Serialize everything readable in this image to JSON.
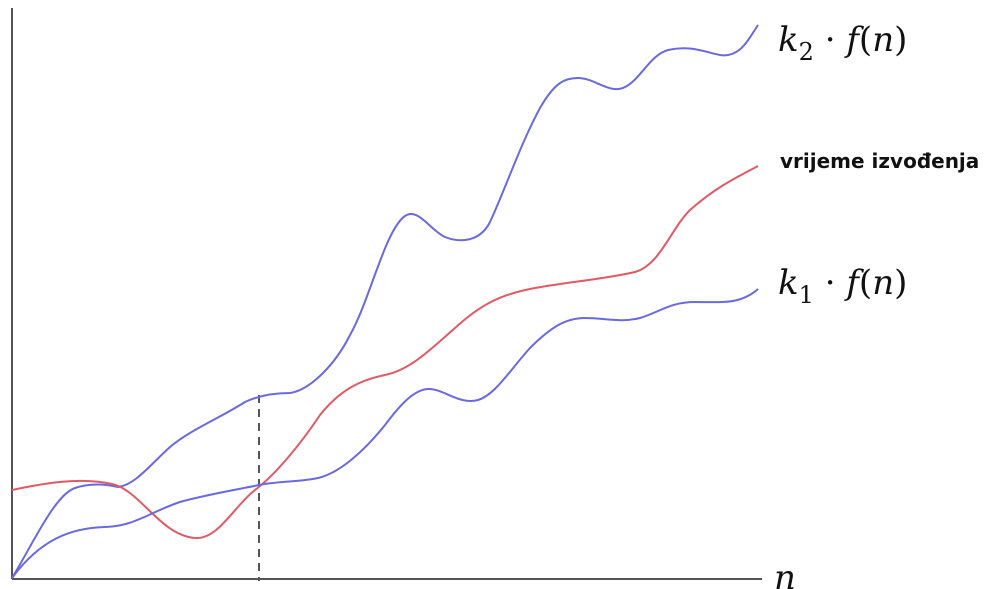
{
  "diagram": {
    "labels": {
      "upper_bound": {
        "coef": "k",
        "sub": "2",
        "dot": " · ",
        "func": "f",
        "open": "(",
        "arg": "n",
        "close": ")"
      },
      "lower_bound": {
        "coef": "k",
        "sub": "1",
        "dot": " · ",
        "func": "f",
        "open": "(",
        "arg": "n",
        "close": ")"
      },
      "running_time": "vrijeme izvođenja",
      "x_axis": "n"
    },
    "colors": {
      "bound_curves": "#6a6ae0",
      "running_time_curve": "#e05a66",
      "axes": "#555555",
      "dashed_marker": "#555555"
    },
    "has_y_axis": true,
    "has_x_axis": true,
    "dashed_vertical_marker": true
  }
}
